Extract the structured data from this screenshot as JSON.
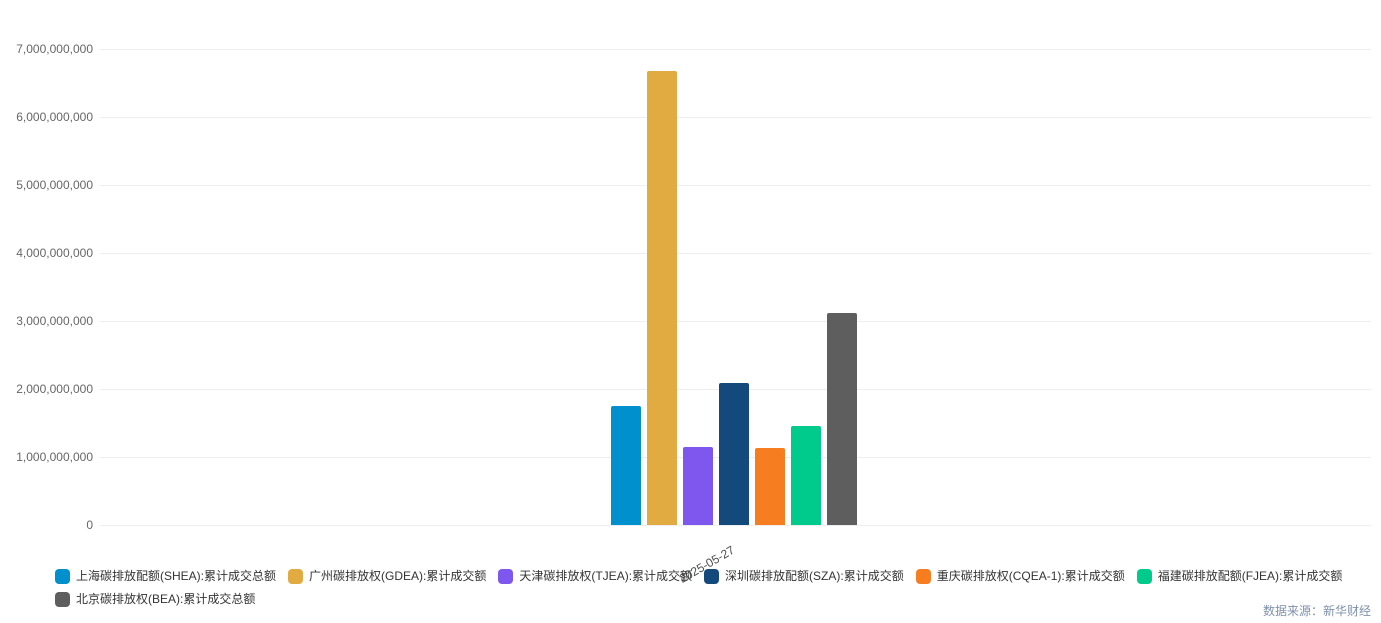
{
  "chart_data": {
    "type": "bar",
    "title": "",
    "categories": [
      "2025-05-27"
    ],
    "series": [
      {
        "name": "上海碳排放配额(SHEA):累计成交总额",
        "values": [
          1755000000
        ],
        "color": "#0090ce"
      },
      {
        "name": "广州碳排放权(GDEA):累计成交额",
        "values": [
          6680000000
        ],
        "color": "#e2ab41"
      },
      {
        "name": "天津碳排放权(TJEA):累计成交额",
        "values": [
          1145000000
        ],
        "color": "#7e57ee"
      },
      {
        "name": "深圳碳排放配额(SZA):累计成交额",
        "values": [
          2090000000
        ],
        "color": "#14497b"
      },
      {
        "name": "重庆碳排放权(CQEA-1):累计成交额",
        "values": [
          1130000000
        ],
        "color": "#f67d20"
      },
      {
        "name": "福建碳排放配额(FJEA):累计成交额",
        "values": [
          1455000000
        ],
        "color": "#00ca8c"
      },
      {
        "name": "北京碳排放权(BEA):累计成交总额",
        "values": [
          3115000000
        ],
        "color": "#5e5e5e"
      }
    ],
    "xlabel": "",
    "ylabel": "",
    "ylim": [
      0,
      7000000000
    ],
    "grid": true,
    "legend_position": "bottom",
    "yticks": [
      {
        "value": 0,
        "label": "0"
      },
      {
        "value": 1000000000,
        "label": "1,000,000,000"
      },
      {
        "value": 2000000000,
        "label": "2,000,000,000"
      },
      {
        "value": 3000000000,
        "label": "3,000,000,000"
      },
      {
        "value": 4000000000,
        "label": "4,000,000,000"
      },
      {
        "value": 5000000000,
        "label": "5,000,000,000"
      },
      {
        "value": 6000000000,
        "label": "6,000,000,000"
      },
      {
        "value": 7000000000,
        "label": "7,000,000,000"
      }
    ]
  },
  "source": {
    "text": "数据来源：新华财经"
  }
}
